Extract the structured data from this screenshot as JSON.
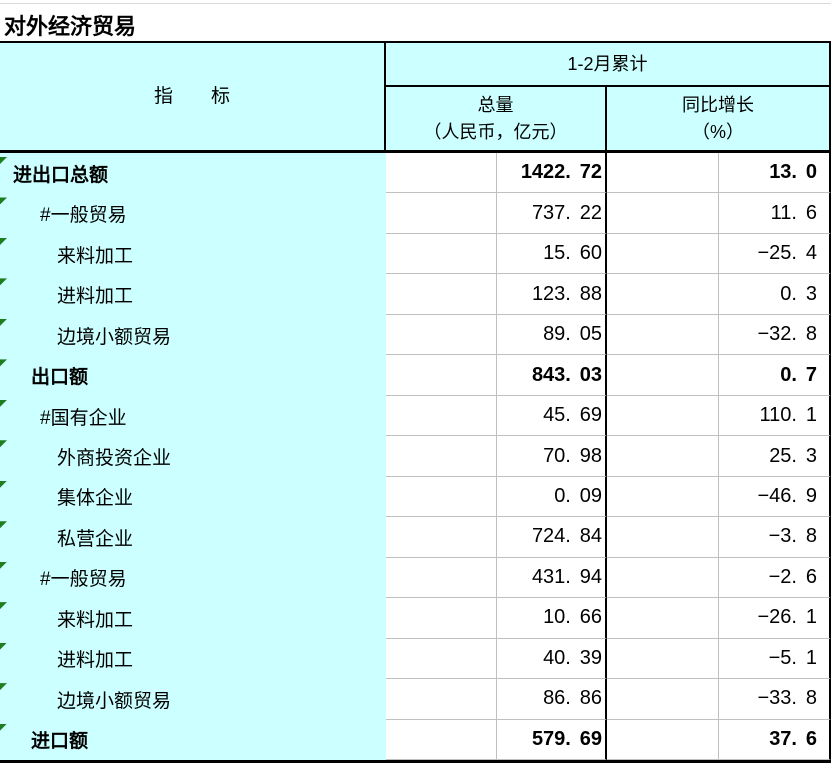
{
  "sheet": {
    "title": "对外经济贸易"
  },
  "table": {
    "header": {
      "indicator_label": "指　　标",
      "period_label": "1-2月累计",
      "total_col": {
        "line1": "总量",
        "line2": "（人民币，亿元）"
      },
      "growth_col": {
        "line1": "同比增长",
        "line2": "（%）"
      }
    },
    "columns": [
      "指标",
      "总量（人民币，亿元）",
      "同比增长（%）"
    ],
    "rows": [
      {
        "label": "进出口总额",
        "total": "1422.72",
        "growth": "13.0",
        "bold": true,
        "indent": 0
      },
      {
        "label": "#一般贸易",
        "total": "737.22",
        "growth": "11.6",
        "bold": false,
        "indent": 2
      },
      {
        "label": "来料加工",
        "total": "15.60",
        "growth": "-25.4",
        "bold": false,
        "indent": 3
      },
      {
        "label": "进料加工",
        "total": "123.88",
        "growth": "0.3",
        "bold": false,
        "indent": 3
      },
      {
        "label": "边境小额贸易",
        "total": "89.05",
        "growth": "-32.8",
        "bold": false,
        "indent": 3
      },
      {
        "label": "出口额",
        "total": "843.03",
        "growth": "0.7",
        "bold": true,
        "indent": 1
      },
      {
        "label": "#国有企业",
        "total": "45.69",
        "growth": "110.1",
        "bold": false,
        "indent": 2
      },
      {
        "label": "外商投资企业",
        "total": "70.98",
        "growth": "25.3",
        "bold": false,
        "indent": 3
      },
      {
        "label": "集体企业",
        "total": "0.09",
        "growth": "-46.9",
        "bold": false,
        "indent": 3
      },
      {
        "label": "私营企业",
        "total": "724.84",
        "growth": "-3.8",
        "bold": false,
        "indent": 3
      },
      {
        "label": "#一般贸易",
        "total": "431.94",
        "growth": "-2.6",
        "bold": false,
        "indent": 2
      },
      {
        "label": "来料加工",
        "total": "10.66",
        "growth": "-26.1",
        "bold": false,
        "indent": 3
      },
      {
        "label": "进料加工",
        "total": "40.39",
        "growth": "-5.1",
        "bold": false,
        "indent": 3
      },
      {
        "label": "边境小额贸易",
        "total": "86.86",
        "growth": "-33.8",
        "bold": false,
        "indent": 3
      },
      {
        "label": "进口额",
        "total": "579.69",
        "growth": "37.6",
        "bold": true,
        "indent": 1
      }
    ]
  },
  "colors": {
    "cell_fill": "#CCFFFF",
    "gridline": "#C0C0C0",
    "border": "#000000",
    "flag_green": "#1E7D1E"
  }
}
